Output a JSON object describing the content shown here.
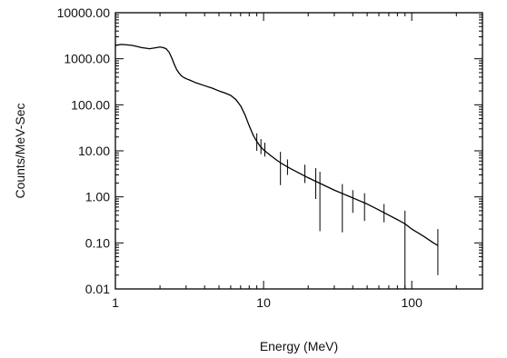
{
  "chart_data": {
    "type": "line",
    "title": "",
    "xlabel": "Energy (MeV)",
    "ylabel": "Counts/MeV-Sec",
    "x_scale": "log",
    "y_scale": "log",
    "xlim": [
      1,
      300
    ],
    "ylim": [
      0.01,
      10000
    ],
    "grid": false,
    "legend": "none",
    "x_ticks": [
      {
        "value": 1,
        "label": "1"
      },
      {
        "value": 10,
        "label": "10"
      },
      {
        "value": 100,
        "label": "100"
      }
    ],
    "y_ticks": [
      {
        "value": 0.01,
        "label": "0.01"
      },
      {
        "value": 0.1,
        "label": "0.10"
      },
      {
        "value": 1,
        "label": "1.00"
      },
      {
        "value": 10,
        "label": "10.00"
      },
      {
        "value": 100,
        "label": "100.00"
      },
      {
        "value": 1000,
        "label": "1000.00"
      },
      {
        "value": 10000,
        "label": "10000.00"
      }
    ],
    "series": [
      {
        "x": [
          1.0,
          1.1,
          1.2,
          1.3,
          1.4,
          1.5,
          1.6,
          1.7,
          1.8,
          1.9,
          2.0,
          2.1,
          2.2,
          2.3,
          2.4,
          2.5,
          2.6,
          2.7,
          2.8,
          2.9,
          3.0,
          3.2,
          3.5,
          4.0,
          4.5,
          5.0,
          5.5,
          6.0,
          6.5,
          7.0,
          7.5,
          8.0,
          8.5,
          9.0,
          9.5,
          10.0,
          11,
          12,
          13,
          15,
          18,
          20,
          25,
          30,
          40,
          50,
          60,
          70,
          80,
          90,
          100,
          120,
          140,
          150
        ],
        "y": [
          1950,
          2050,
          2000,
          1950,
          1850,
          1750,
          1700,
          1650,
          1700,
          1750,
          1800,
          1750,
          1650,
          1400,
          1050,
          750,
          570,
          480,
          420,
          390,
          370,
          340,
          300,
          260,
          230,
          200,
          180,
          160,
          130,
          95,
          60,
          35,
          22,
          16,
          12.5,
          10.5,
          8.2,
          6.6,
          5.5,
          4.2,
          3.1,
          2.6,
          1.85,
          1.4,
          0.95,
          0.7,
          0.52,
          0.4,
          0.32,
          0.26,
          0.2,
          0.14,
          0.1,
          0.088
        ]
      }
    ],
    "error_bars": [
      {
        "x": 9.0,
        "y": 16,
        "low": 10,
        "high": 24
      },
      {
        "x": 9.6,
        "y": 12.5,
        "low": 8.5,
        "high": 18
      },
      {
        "x": 10.2,
        "y": 10.5,
        "low": 7.5,
        "high": 15
      },
      {
        "x": 13.0,
        "y": 5.5,
        "low": 1.8,
        "high": 9.5
      },
      {
        "x": 14.5,
        "y": 4.6,
        "low": 3.0,
        "high": 6.5
      },
      {
        "x": 19.0,
        "y": 3.3,
        "low": 2.0,
        "high": 5.0
      },
      {
        "x": 22.5,
        "y": 2.8,
        "low": 0.9,
        "high": 4.2
      },
      {
        "x": 24.0,
        "y": 1.8,
        "low": 0.18,
        "high": 3.5
      },
      {
        "x": 34.0,
        "y": 1.0,
        "low": 0.17,
        "high": 1.9
      },
      {
        "x": 40.0,
        "y": 0.95,
        "low": 0.45,
        "high": 1.4
      },
      {
        "x": 48.0,
        "y": 0.75,
        "low": 0.3,
        "high": 1.2
      },
      {
        "x": 65.0,
        "y": 0.45,
        "low": 0.28,
        "high": 0.7
      },
      {
        "x": 90.0,
        "y": 0.3,
        "low": 0.01,
        "high": 0.5
      },
      {
        "x": 150.0,
        "y": 0.088,
        "low": 0.02,
        "high": 0.2
      }
    ]
  }
}
